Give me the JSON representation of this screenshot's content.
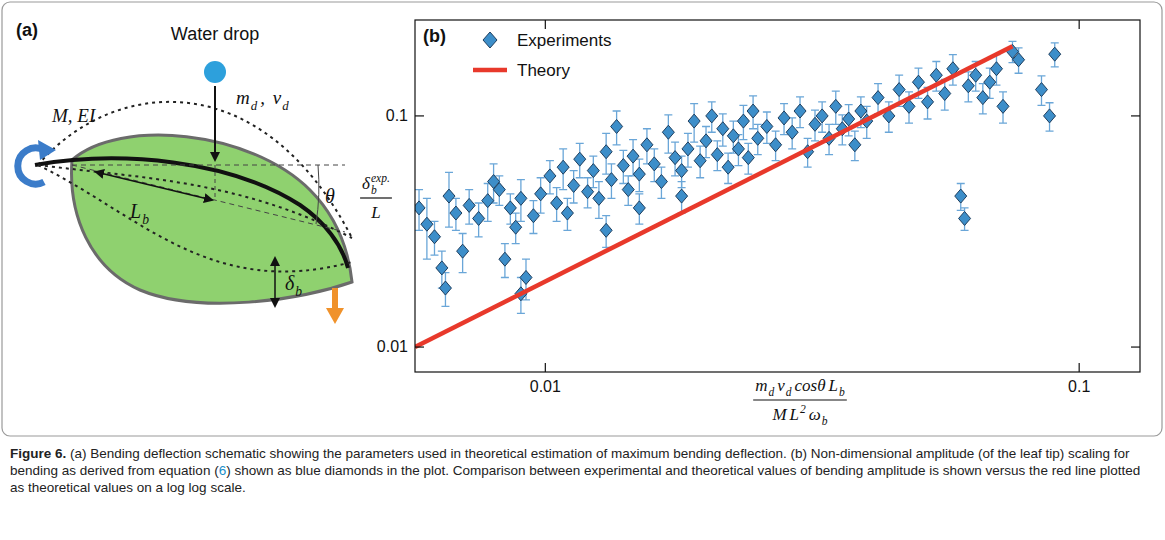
{
  "chart_data": {
    "type": "scatter",
    "panel_label": "(b)",
    "log": true,
    "legend": "upper left",
    "grid": false,
    "xlim": [
      0.0057,
      0.13
    ],
    "ylim": [
      0.0078,
      0.26
    ],
    "xticks": [
      0.01,
      0.1
    ],
    "yticks": [
      0.01,
      0.1
    ],
    "xlabel": {
      "numerator": [
        {
          "base": "m",
          "sub": "d"
        },
        {
          "base": "v",
          "sub": "d"
        },
        {
          "base": "cosθ"
        },
        {
          "base": "L",
          "sub": "b"
        }
      ],
      "denominator": [
        {
          "base": "M"
        },
        {
          "base": "L",
          "sup": "2"
        },
        {
          "base": "ω",
          "sub": "b"
        }
      ]
    },
    "ylabel": {
      "numerator": [
        {
          "base": "δ",
          "sub": "b",
          "sup": "exp."
        }
      ],
      "denominator": [
        {
          "base": "L"
        }
      ]
    },
    "series": [
      {
        "name": "Experiments",
        "type": "scatter",
        "marker": "diamond",
        "color": "#3d8ec9",
        "x": [
          0.0058,
          0.006,
          0.0062,
          0.0064,
          0.0065,
          0.0066,
          0.0068,
          0.007,
          0.0072,
          0.0075,
          0.0078,
          0.008,
          0.0082,
          0.0084,
          0.0086,
          0.0088,
          0.009,
          0.009,
          0.0092,
          0.0095,
          0.0098,
          0.0102,
          0.0105,
          0.0108,
          0.011,
          0.0113,
          0.0116,
          0.012,
          0.0123,
          0.0126,
          0.013,
          0.013,
          0.0133,
          0.0136,
          0.014,
          0.0143,
          0.0146,
          0.015,
          0.015,
          0.0155,
          0.016,
          0.0165,
          0.017,
          0.0175,
          0.018,
          0.018,
          0.0185,
          0.019,
          0.0195,
          0.02,
          0.0205,
          0.021,
          0.0215,
          0.022,
          0.0225,
          0.023,
          0.0235,
          0.024,
          0.0245,
          0.025,
          0.026,
          0.027,
          0.028,
          0.029,
          0.03,
          0.031,
          0.032,
          0.033,
          0.034,
          0.035,
          0.036,
          0.037,
          0.038,
          0.039,
          0.04,
          0.042,
          0.044,
          0.046,
          0.048,
          0.05,
          0.052,
          0.054,
          0.056,
          0.058,
          0.06,
          0.061,
          0.062,
          0.064,
          0.066,
          0.068,
          0.07,
          0.072,
          0.075,
          0.077,
          0.085,
          0.088,
          0.09
        ],
        "values": [
          0.04,
          0.034,
          0.03,
          0.022,
          0.018,
          0.045,
          0.038,
          0.026,
          0.041,
          0.036,
          0.043,
          0.052,
          0.048,
          0.024,
          0.04,
          0.033,
          0.044,
          0.017,
          0.02,
          0.037,
          0.046,
          0.055,
          0.042,
          0.06,
          0.038,
          0.05,
          0.065,
          0.047,
          0.058,
          0.044,
          0.07,
          0.032,
          0.053,
          0.09,
          0.061,
          0.048,
          0.067,
          0.056,
          0.04,
          0.075,
          0.062,
          0.052,
          0.085,
          0.066,
          0.058,
          0.045,
          0.072,
          0.095,
          0.064,
          0.078,
          0.1,
          0.068,
          0.088,
          0.06,
          0.082,
          0.072,
          0.095,
          0.066,
          0.105,
          0.08,
          0.09,
          0.075,
          0.098,
          0.085,
          0.105,
          0.07,
          0.092,
          0.1,
          0.08,
          0.11,
          0.088,
          0.097,
          0.075,
          0.105,
          0.095,
          0.12,
          0.1,
          0.13,
          0.11,
          0.14,
          0.115,
          0.15,
          0.125,
          0.16,
          0.045,
          0.036,
          0.135,
          0.15,
          0.12,
          0.14,
          0.16,
          0.11,
          0.19,
          0.175,
          0.13,
          0.1,
          0.185
        ],
        "errors": [
          0.008,
          0.01,
          0.005,
          0.004,
          0.003,
          0.012,
          0.006,
          0.005,
          0.007,
          0.006,
          0.008,
          0.01,
          0.007,
          0.004,
          0.006,
          0.005,
          0.009,
          0.003,
          0.004,
          0.006,
          0.008,
          0.009,
          0.007,
          0.012,
          0.006,
          0.008,
          0.011,
          0.007,
          0.009,
          0.008,
          0.014,
          0.005,
          0.009,
          0.015,
          0.01,
          0.007,
          0.012,
          0.009,
          0.006,
          0.013,
          0.01,
          0.008,
          0.016,
          0.011,
          0.009,
          0.007,
          0.012,
          0.018,
          0.01,
          0.012,
          0.015,
          0.01,
          0.014,
          0.009,
          0.013,
          0.011,
          0.016,
          0.01,
          0.017,
          0.012,
          0.014,
          0.011,
          0.015,
          0.013,
          0.016,
          0.01,
          0.014,
          0.015,
          0.012,
          0.018,
          0.013,
          0.015,
          0.011,
          0.016,
          0.015,
          0.018,
          0.015,
          0.02,
          0.017,
          0.021,
          0.018,
          0.022,
          0.019,
          0.024,
          0.006,
          0.004,
          0.02,
          0.022,
          0.018,
          0.021,
          0.024,
          0.017,
          0.02,
          0.022,
          0.019,
          0.014,
          0.022
        ]
      },
      {
        "name": "Theory",
        "type": "line",
        "line_style": "solid",
        "color": "#e8392b",
        "x": [
          0.0057,
          0.075
        ],
        "values": [
          0.01,
          0.2
        ]
      }
    ]
  },
  "diagram": {
    "panel_label": "(a)",
    "drop_label": "Water drop",
    "drop_params": [
      {
        "base": "m",
        "sub": "d"
      },
      {
        "base": ", "
      },
      {
        "base": "v",
        "sub": "d"
      }
    ],
    "leaf_params": [
      {
        "base": "M, EI"
      }
    ],
    "length": [
      {
        "base": "L",
        "sub": "b"
      }
    ],
    "angle": [
      {
        "base": "θ"
      }
    ],
    "deflection": [
      {
        "base": "δ",
        "sub": "b"
      }
    ]
  },
  "caption": {
    "label": "Figure 6.",
    "text": " (a) Bending deflection schematic showing the parameters used in theoretical estimation of maximum bending deflection. (b) Non-dimensional amplitude (of the leaf tip) scaling for bending as derived from equation (",
    "ref": "6",
    "text_end": ") shown as blue diamonds in the plot. Comparison between experimental and theoretical values of bending amplitude is shown versus the red line plotted as theoretical values on a log log scale."
  }
}
